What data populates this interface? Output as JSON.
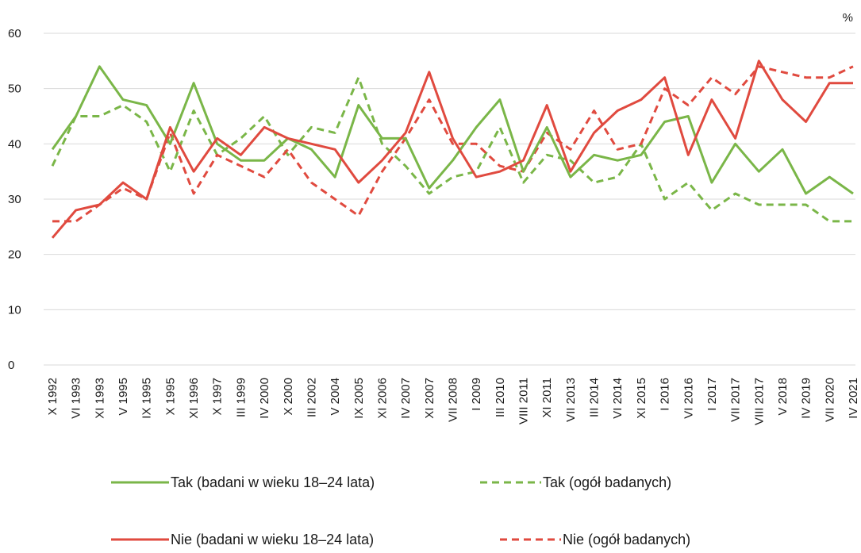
{
  "chart_data": {
    "type": "line",
    "unit": "%",
    "ylim": [
      0,
      60
    ],
    "yticks": [
      0,
      10,
      20,
      30,
      40,
      50,
      60
    ],
    "grid": true,
    "legend_position": "bottom",
    "categories": [
      "X 1992",
      "VI 1993",
      "XI 1993",
      "V 1995",
      "IX 1995",
      "X 1995",
      "XI 1996",
      "X 1997",
      "III 1999",
      "IV 2000",
      "X 2000",
      "III 2002",
      "V 2004",
      "IX 2005",
      "XI 2006",
      "IV 2007",
      "XI 2007",
      "VII 2008",
      "I 2009",
      "III 2010",
      "VIII 2011",
      "XI 2011",
      "VII 2013",
      "III 2014",
      "VI 2014",
      "XI 2015",
      "I 2016",
      "VI 2016",
      "I 2017",
      "VII 2017",
      "VIII 2017",
      "V 2018",
      "IV 2019",
      "VII 2020",
      "IV 2021"
    ],
    "series": [
      {
        "name": "Tak (badani w wieku 18–24 lata)",
        "color": "#7ab648",
        "dashed": false,
        "values": [
          39,
          45,
          54,
          48,
          47,
          40,
          51,
          40,
          37,
          37,
          41,
          39,
          34,
          47,
          41,
          41,
          32,
          37,
          43,
          48,
          35,
          43,
          34,
          38,
          37,
          38,
          44,
          45,
          33,
          40,
          35,
          39,
          31,
          34,
          31
        ]
      },
      {
        "name": "Tak (ogół badanych)",
        "color": "#7ab648",
        "dashed": true,
        "values": [
          36,
          45,
          45,
          47,
          44,
          35,
          46,
          38,
          41,
          45,
          38,
          43,
          42,
          52,
          40,
          36,
          31,
          34,
          35,
          43,
          33,
          38,
          37,
          33,
          34,
          40,
          30,
          33,
          28,
          31,
          29,
          29,
          29,
          26,
          26
        ]
      },
      {
        "name": "Nie (badani w wieku 18–24 lata)",
        "color": "#e04a3f",
        "dashed": false,
        "values": [
          23,
          28,
          29,
          33,
          30,
          43,
          35,
          41,
          38,
          43,
          41,
          40,
          39,
          33,
          37,
          42,
          53,
          41,
          34,
          35,
          37,
          47,
          35,
          42,
          46,
          48,
          52,
          38,
          48,
          41,
          55,
          48,
          44,
          51,
          51
        ]
      },
      {
        "name": "Nie (ogół badanych)",
        "color": "#e04a3f",
        "dashed": true,
        "values": [
          26,
          26,
          29,
          32,
          30,
          42,
          31,
          38,
          36,
          34,
          39,
          33,
          30,
          27,
          35,
          41,
          48,
          40,
          40,
          36,
          35,
          42,
          39,
          46,
          39,
          40,
          50,
          47,
          52,
          49,
          54,
          53,
          52,
          52,
          54
        ]
      }
    ]
  }
}
